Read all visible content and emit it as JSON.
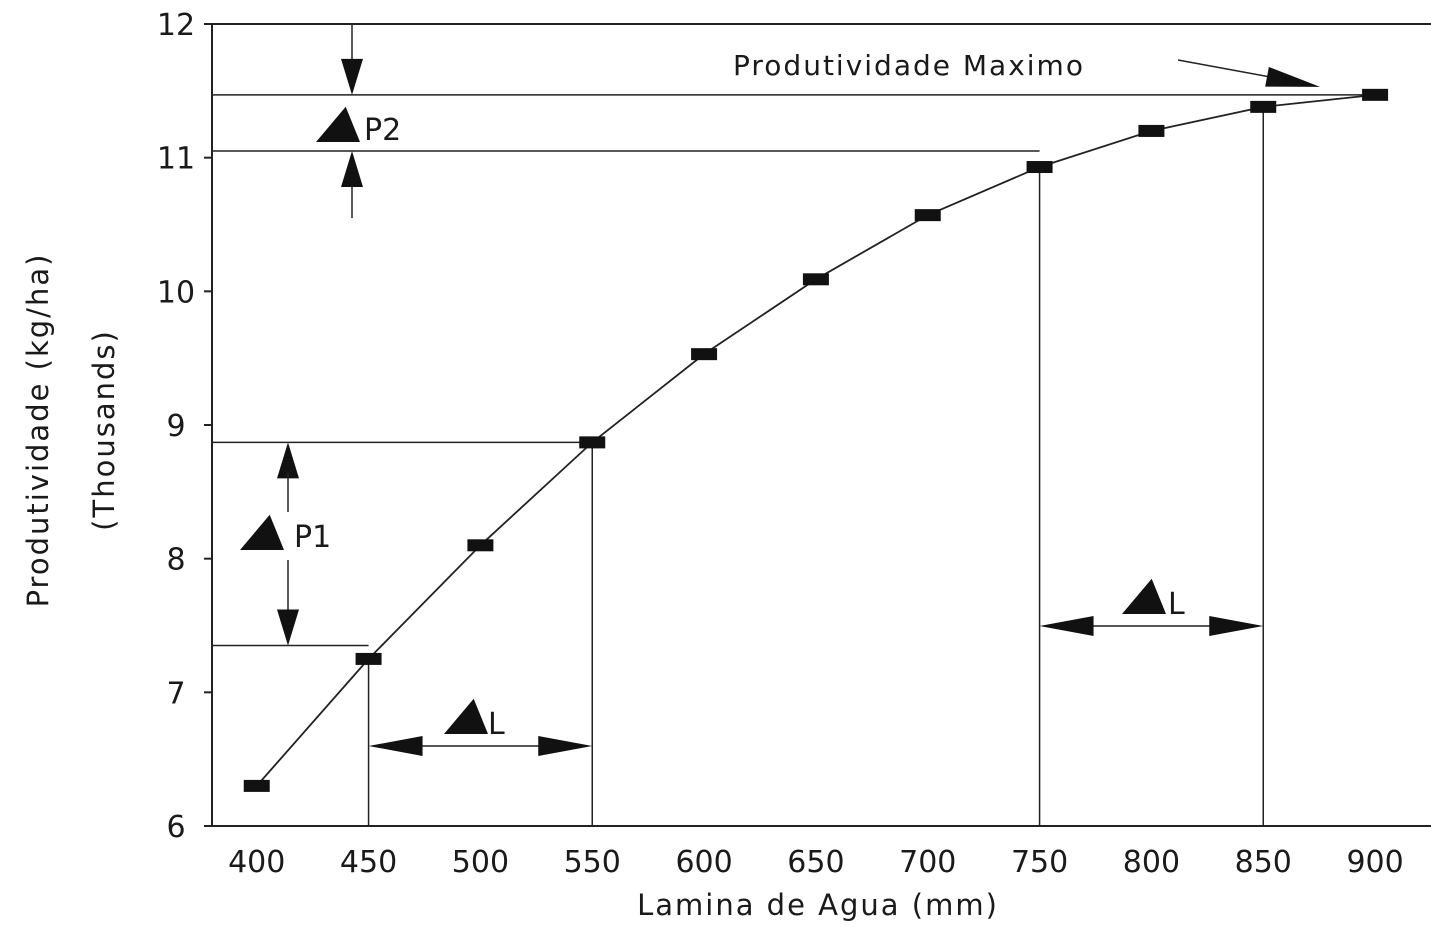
{
  "chart_data": {
    "type": "line",
    "xlabel": "Lamina de Agua (mm)",
    "ylabel": "Produtividade (kg/ha)",
    "ylabel_sub": "(Thousands)",
    "xlim": [
      380,
      925
    ],
    "ylim": [
      6,
      12
    ],
    "x_ticks": [
      "400",
      "450",
      "500",
      "550",
      "600",
      "650",
      "700",
      "750",
      "800",
      "850",
      "900"
    ],
    "y_ticks": [
      "6",
      "7",
      "8",
      "9",
      "10",
      "11",
      "12"
    ],
    "grid": false,
    "series": [
      {
        "x": [
          400,
          450,
          500,
          550,
          600,
          650,
          700,
          750,
          800,
          850,
          900
        ],
        "y": [
          6.3,
          7.25,
          8.1,
          8.87,
          9.53,
          10.09,
          10.57,
          10.93,
          11.2,
          11.38,
          11.47
        ]
      }
    ],
    "annotations": {
      "max_label": "Produtividade Maximo",
      "p1_label": "P1",
      "p2_label": "P2",
      "l_label_left": "L",
      "l_label_right": "L",
      "p1_range": [
        7.35,
        8.87
      ],
      "p2_range": [
        11.05,
        11.47
      ],
      "l_left_range": [
        450,
        550
      ],
      "l_right_range": [
        750,
        850
      ]
    }
  }
}
